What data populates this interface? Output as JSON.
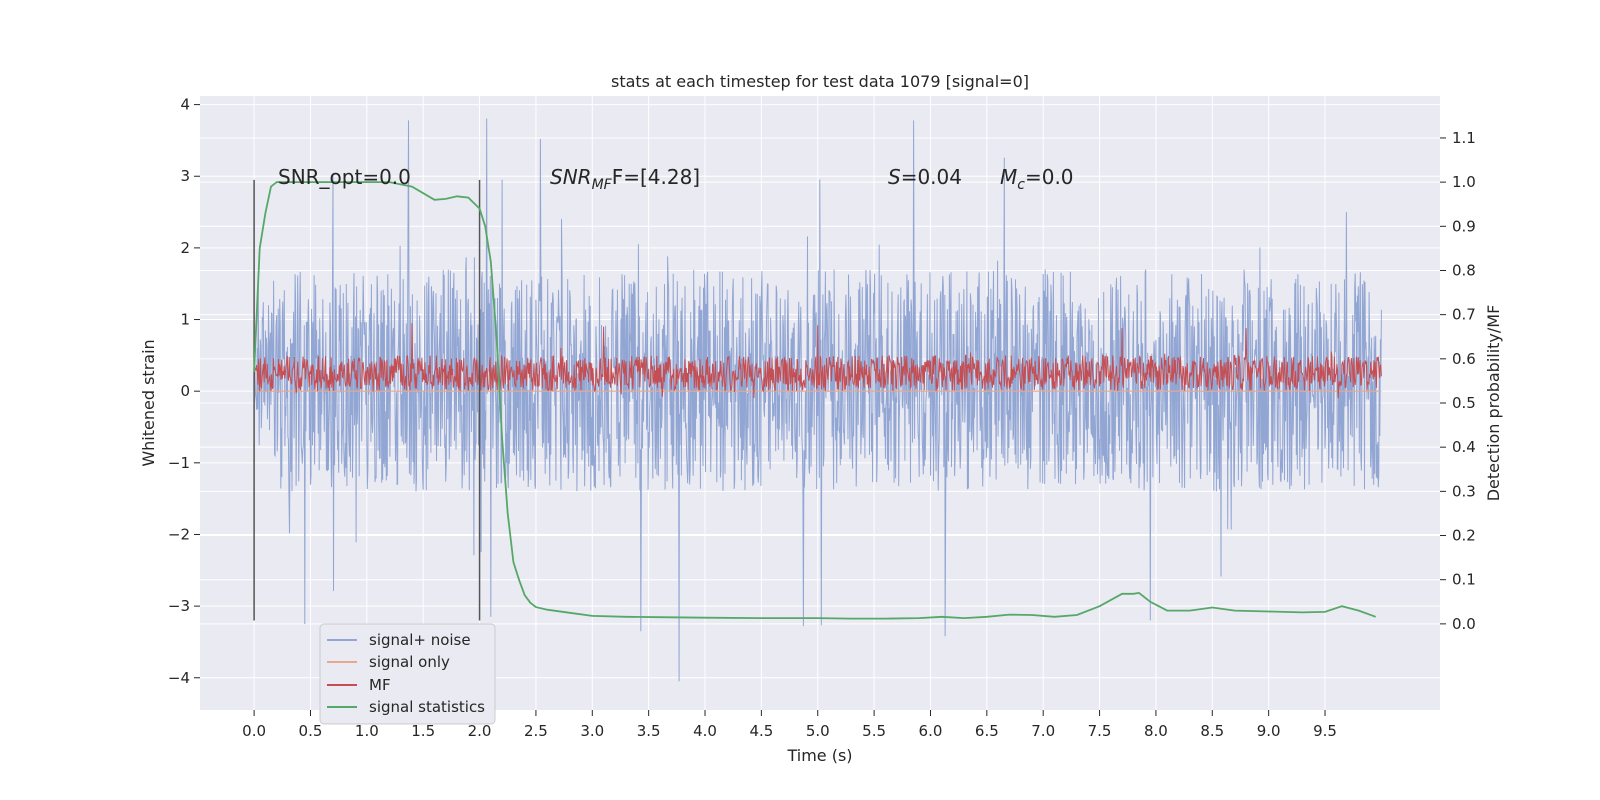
{
  "chart_data": {
    "type": "line",
    "title": "stats at each timestep for test data 1079 [signal=0]",
    "xlabel": "Time (s)",
    "ylabel": "Whitened strain",
    "ylabel_right": "Detection probability/MF",
    "xlim": [
      -0.48,
      10.52
    ],
    "ylim": [
      -4.45,
      4.12
    ],
    "ylim_right": [
      -0.195,
      1.195
    ],
    "x_ticks": [
      "0.0",
      "0.5",
      "1.0",
      "1.5",
      "2.0",
      "2.5",
      "3.0",
      "3.5",
      "4.0",
      "4.5",
      "5.0",
      "5.5",
      "6.0",
      "6.5",
      "7.0",
      "7.5",
      "8.0",
      "8.5",
      "9.0",
      "9.5"
    ],
    "y_ticks": [
      "−4",
      "−3",
      "−2",
      "−1",
      "0",
      "1",
      "2",
      "3",
      "4"
    ],
    "y_ticks_right": [
      "0.0",
      "0.1",
      "0.2",
      "0.3",
      "0.4",
      "0.5",
      "0.6",
      "0.7",
      "0.8",
      "0.9",
      "1.0",
      "1.1"
    ],
    "grid": true,
    "legend_position": "lower-left",
    "annotations": {
      "snr_opt": "SNR_opt=0.0",
      "snr_mf_sym": "SNR",
      "snr_mf_sub": "MF",
      "snr_mf_val": "F=[4.28]",
      "s_sym": "S",
      "s_val": "=0.04",
      "mc_sym": "M",
      "mc_sub": "c",
      "mc_val": "=0.0"
    },
    "vlines": [
      0.0,
      2.0
    ],
    "series": [
      {
        "name": "signal+ noise",
        "color": "#92a6d4",
        "axis": "left",
        "style": "dense-noise",
        "x_range": [
          0.0,
          10.0
        ],
        "typical_range": [
          -1.4,
          1.7
        ],
        "extremes": [
          {
            "x": 1.37,
            "y": 3.78
          },
          {
            "x": 5.85,
            "y": 3.78
          },
          {
            "x": 2.54,
            "y": 3.52
          },
          {
            "x": 3.77,
            "y": -4.05
          },
          {
            "x": 6.13,
            "y": -3.42
          },
          {
            "x": 3.43,
            "y": -3.35
          },
          {
            "x": 0.45,
            "y": -3.25
          },
          {
            "x": 7.95,
            "y": -3.2
          },
          {
            "x": 2.1,
            "y": -3.15
          },
          {
            "x": 9.69,
            "y": 2.5
          },
          {
            "x": 0.7,
            "y": 3.0
          },
          {
            "x": 2.2,
            "y": 2.95
          }
        ]
      },
      {
        "name": "signal only",
        "color": "#e8a88f",
        "axis": "left",
        "x": [
          0.0,
          10.0
        ],
        "y": [
          0.0,
          0.0
        ]
      },
      {
        "name": "MF",
        "color": "#c44e52",
        "axis": "left",
        "style": "dense-noise",
        "x_range": [
          0.0,
          10.0
        ],
        "typical_range": [
          0.0,
          0.5
        ],
        "extremes": [
          {
            "x": 1.4,
            "y": 0.95
          },
          {
            "x": 3.1,
            "y": 0.9
          },
          {
            "x": 5.0,
            "y": 0.92
          },
          {
            "x": 8.8,
            "y": 0.88
          },
          {
            "x": 7.7,
            "y": 0.88
          }
        ]
      },
      {
        "name": "signal statistics",
        "color": "#55a868",
        "axis": "right",
        "x": [
          0.0,
          0.05,
          0.1,
          0.15,
          0.2,
          0.3,
          0.5,
          0.8,
          1.0,
          1.2,
          1.4,
          1.5,
          1.6,
          1.7,
          1.8,
          1.9,
          2.0,
          2.05,
          2.1,
          2.15,
          2.2,
          2.25,
          2.3,
          2.35,
          2.4,
          2.45,
          2.5,
          2.6,
          2.8,
          3.0,
          3.3,
          3.6,
          4.0,
          4.5,
          5.0,
          5.3,
          5.6,
          5.9,
          6.1,
          6.3,
          6.5,
          6.7,
          6.9,
          7.1,
          7.3,
          7.5,
          7.7,
          7.8,
          7.85,
          7.95,
          8.1,
          8.3,
          8.5,
          8.7,
          9.0,
          9.3,
          9.5,
          9.65,
          9.8,
          9.95
        ],
        "y": [
          0.57,
          0.85,
          0.93,
          0.99,
          1.0,
          1.0,
          1.0,
          1.0,
          1.0,
          1.0,
          0.99,
          0.975,
          0.96,
          0.962,
          0.968,
          0.965,
          0.94,
          0.9,
          0.82,
          0.65,
          0.42,
          0.25,
          0.14,
          0.1,
          0.065,
          0.048,
          0.038,
          0.032,
          0.025,
          0.018,
          0.016,
          0.015,
          0.014,
          0.013,
          0.013,
          0.012,
          0.012,
          0.013,
          0.016,
          0.013,
          0.016,
          0.021,
          0.02,
          0.016,
          0.02,
          0.04,
          0.068,
          0.068,
          0.07,
          0.05,
          0.03,
          0.03,
          0.037,
          0.03,
          0.028,
          0.026,
          0.027,
          0.04,
          0.03,
          0.016
        ]
      }
    ]
  }
}
